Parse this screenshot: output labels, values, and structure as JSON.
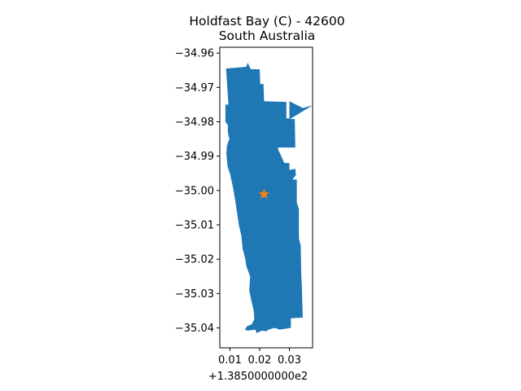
{
  "chart_data": {
    "type": "map",
    "title_line1": "Holdfast Bay (C) - 42600",
    "title_line2": "South Australia",
    "x_ticks": [
      {
        "value": 0.01,
        "label": "0.01"
      },
      {
        "value": 0.02,
        "label": "0.02"
      },
      {
        "value": 0.03,
        "label": "0.03"
      }
    ],
    "x_offset_label": "+1.3850000000e2",
    "y_ticks": [
      {
        "value": -34.96,
        "label": "−34.96"
      },
      {
        "value": -34.97,
        "label": "−34.97"
      },
      {
        "value": -34.98,
        "label": "−34.98"
      },
      {
        "value": -34.99,
        "label": "−34.99"
      },
      {
        "value": -35.0,
        "label": "−35.00"
      },
      {
        "value": -35.01,
        "label": "−35.01"
      },
      {
        "value": -35.02,
        "label": "−35.02"
      },
      {
        "value": -35.03,
        "label": "−35.03"
      },
      {
        "value": -35.04,
        "label": "−35.04"
      }
    ],
    "xlim": [
      0.0066,
      0.0378
    ],
    "ylim": [
      -35.0458,
      -34.9583
    ],
    "region_color": "#1f77b4",
    "marker_color": "#ff7f0e",
    "marker": {
      "x": 0.0215,
      "y": -35.0011
    },
    "boundary": [
      [
        0.0087,
        -34.9645
      ],
      [
        0.0155,
        -34.964
      ],
      [
        0.016,
        -34.9628
      ],
      [
        0.017,
        -34.9647
      ],
      [
        0.02,
        -34.9647
      ],
      [
        0.0202,
        -34.969
      ],
      [
        0.0213,
        -34.969
      ],
      [
        0.0215,
        -34.974
      ],
      [
        0.029,
        -34.9742
      ],
      [
        0.029,
        -34.979
      ],
      [
        0.03,
        -34.979
      ],
      [
        0.03,
        -34.974
      ],
      [
        0.0345,
        -34.976
      ],
      [
        0.0378,
        -34.9752
      ],
      [
        0.0302,
        -34.9792
      ],
      [
        0.0318,
        -34.9792
      ],
      [
        0.032,
        -34.9875
      ],
      [
        0.0262,
        -34.9875
      ],
      [
        0.0262,
        -34.988
      ],
      [
        0.0283,
        -34.992
      ],
      [
        0.03,
        -34.992
      ],
      [
        0.03,
        -34.994
      ],
      [
        0.032,
        -34.9937
      ],
      [
        0.0322,
        -34.9955
      ],
      [
        0.031,
        -34.9968
      ],
      [
        0.0325,
        -34.9968
      ],
      [
        0.0325,
        -35.0035
      ],
      [
        0.0332,
        -35.0055
      ],
      [
        0.0332,
        -35.014
      ],
      [
        0.0338,
        -35.016
      ],
      [
        0.034,
        -35.0245
      ],
      [
        0.0342,
        -35.028
      ],
      [
        0.0345,
        -35.037
      ],
      [
        0.0305,
        -35.0372
      ],
      [
        0.0305,
        -35.04
      ],
      [
        0.0268,
        -35.0405
      ],
      [
        0.025,
        -35.04
      ],
      [
        0.023,
        -35.0405
      ],
      [
        0.0222,
        -35.041
      ],
      [
        0.0208,
        -35.0408
      ],
      [
        0.019,
        -35.0415
      ],
      [
        0.0185,
        -35.0405
      ],
      [
        0.016,
        -35.0408
      ],
      [
        0.015,
        -35.0405
      ],
      [
        0.0158,
        -35.0395
      ],
      [
        0.0173,
        -35.039
      ],
      [
        0.0182,
        -35.0375
      ],
      [
        0.018,
        -35.035
      ],
      [
        0.0172,
        -35.032
      ],
      [
        0.0165,
        -35.029
      ],
      [
        0.0168,
        -35.025
      ],
      [
        0.0155,
        -35.022
      ],
      [
        0.0152,
        -35.02
      ],
      [
        0.0143,
        -35.017
      ],
      [
        0.0138,
        -35.013
      ],
      [
        0.013,
        -35.01
      ],
      [
        0.0125,
        -35.007
      ],
      [
        0.0118,
        -35.003
      ],
      [
        0.011,
        -34.999
      ],
      [
        0.01,
        -34.995
      ],
      [
        0.0092,
        -34.993
      ],
      [
        0.0088,
        -34.989
      ],
      [
        0.009,
        -34.987
      ],
      [
        0.0098,
        -34.985
      ],
      [
        0.0093,
        -34.983
      ],
      [
        0.0093,
        -34.981
      ],
      [
        0.0085,
        -34.98
      ],
      [
        0.0085,
        -34.975
      ],
      [
        0.0095,
        -34.975
      ],
      [
        0.0087,
        -34.9645
      ]
    ]
  }
}
